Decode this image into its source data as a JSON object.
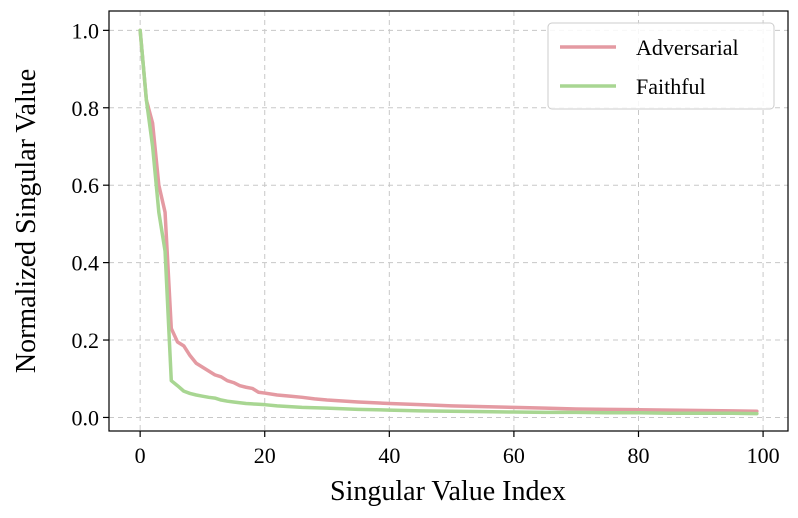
{
  "chart_data": {
    "type": "line",
    "xlabel": "Singular Value Index",
    "ylabel": "Normalized Singular Value",
    "xlim": [
      -5,
      104
    ],
    "ylim": [
      -0.035,
      1.05
    ],
    "xticks": [
      0,
      20,
      40,
      60,
      80,
      100
    ],
    "xtick_labels": [
      "0",
      "20",
      "40",
      "60",
      "80",
      "100"
    ],
    "yticks": [
      0.0,
      0.2,
      0.4,
      0.6,
      0.8,
      1.0
    ],
    "ytick_labels": [
      "0.0",
      "0.2",
      "0.4",
      "0.6",
      "0.8",
      "1.0"
    ],
    "grid": true,
    "legend_position": "top-right",
    "series": [
      {
        "name": "Adversarial",
        "color": "#e49aa2",
        "x": [
          0,
          1,
          2,
          3,
          4,
          5,
          6,
          7,
          8,
          9,
          10,
          11,
          12,
          13,
          14,
          15,
          16,
          17,
          18,
          19,
          20,
          22,
          24,
          26,
          28,
          30,
          35,
          40,
          45,
          50,
          55,
          60,
          65,
          70,
          75,
          80,
          85,
          90,
          95,
          99
        ],
        "y": [
          1.0,
          0.82,
          0.76,
          0.6,
          0.53,
          0.23,
          0.195,
          0.185,
          0.16,
          0.14,
          0.13,
          0.12,
          0.11,
          0.105,
          0.095,
          0.09,
          0.082,
          0.078,
          0.075,
          0.065,
          0.063,
          0.058,
          0.055,
          0.052,
          0.048,
          0.045,
          0.04,
          0.036,
          0.033,
          0.03,
          0.028,
          0.026,
          0.024,
          0.022,
          0.021,
          0.02,
          0.019,
          0.018,
          0.017,
          0.016
        ]
      },
      {
        "name": "Faithful",
        "color": "#a8d692",
        "x": [
          0,
          1,
          2,
          3,
          4,
          5,
          6,
          7,
          8,
          9,
          10,
          11,
          12,
          13,
          14,
          15,
          16,
          17,
          18,
          19,
          20,
          22,
          24,
          26,
          28,
          30,
          35,
          40,
          45,
          50,
          55,
          60,
          65,
          70,
          75,
          80,
          85,
          90,
          95,
          99
        ],
        "y": [
          1.0,
          0.82,
          0.7,
          0.53,
          0.43,
          0.095,
          0.082,
          0.068,
          0.062,
          0.058,
          0.055,
          0.052,
          0.05,
          0.045,
          0.042,
          0.04,
          0.038,
          0.036,
          0.035,
          0.034,
          0.033,
          0.03,
          0.028,
          0.026,
          0.025,
          0.024,
          0.021,
          0.019,
          0.017,
          0.016,
          0.015,
          0.014,
          0.013,
          0.013,
          0.012,
          0.012,
          0.011,
          0.011,
          0.011,
          0.01
        ]
      }
    ]
  }
}
